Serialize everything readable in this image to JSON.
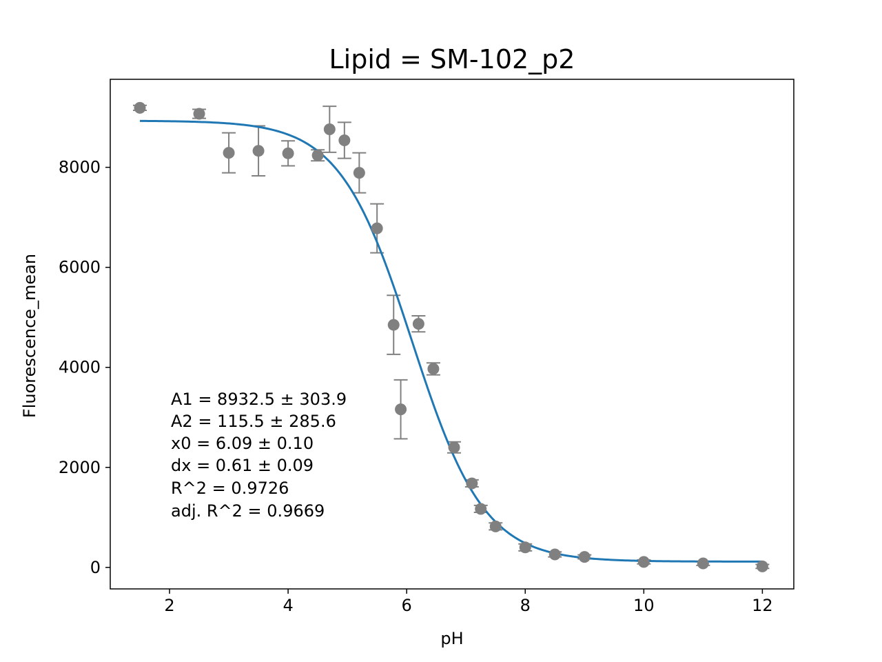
{
  "chart_data": {
    "type": "scatter",
    "title": "Lipid = SM-102_p2",
    "xlabel": "pH",
    "ylabel": "Fluorescence_mean",
    "xlim": [
      1.0,
      12.53
    ],
    "ylim": [
      -430,
      9760
    ],
    "x_ticks": [
      2,
      4,
      6,
      8,
      10,
      12
    ],
    "x_tick_labels": [
      "2",
      "4",
      "6",
      "8",
      "10",
      "12"
    ],
    "y_ticks": [
      0,
      2000,
      4000,
      6000,
      8000
    ],
    "y_tick_labels": [
      "0",
      "2000",
      "4000",
      "6000",
      "8000"
    ],
    "grid": false,
    "series": [
      {
        "kind": "points_with_error_bars",
        "color": "#808080",
        "points": [
          {
            "x": 1.5,
            "y": 9190,
            "err": 50
          },
          {
            "x": 2.5,
            "y": 9070,
            "err": 90
          },
          {
            "x": 3.0,
            "y": 8290,
            "err": 400
          },
          {
            "x": 3.5,
            "y": 8330,
            "err": 500
          },
          {
            "x": 4.0,
            "y": 8280,
            "err": 250
          },
          {
            "x": 4.5,
            "y": 8240,
            "err": 110
          },
          {
            "x": 4.7,
            "y": 8760,
            "err": 460
          },
          {
            "x": 4.95,
            "y": 8540,
            "err": 360
          },
          {
            "x": 5.2,
            "y": 7890,
            "err": 400
          },
          {
            "x": 5.5,
            "y": 6780,
            "err": 490
          },
          {
            "x": 5.78,
            "y": 4850,
            "err": 590
          },
          {
            "x": 5.9,
            "y": 3160,
            "err": 590
          },
          {
            "x": 6.2,
            "y": 4870,
            "err": 160
          },
          {
            "x": 6.45,
            "y": 3970,
            "err": 120
          },
          {
            "x": 6.8,
            "y": 2400,
            "err": 110
          },
          {
            "x": 7.1,
            "y": 1680,
            "err": 70
          },
          {
            "x": 7.25,
            "y": 1170,
            "err": 70
          },
          {
            "x": 7.5,
            "y": 820,
            "err": 70
          },
          {
            "x": 8.0,
            "y": 400,
            "err": 70
          },
          {
            "x": 8.5,
            "y": 260,
            "err": 50
          },
          {
            "x": 9.0,
            "y": 210,
            "err": 40
          },
          {
            "x": 10.0,
            "y": 110,
            "err": 40
          },
          {
            "x": 11.0,
            "y": 80,
            "err": 40
          },
          {
            "x": 12.0,
            "y": 20,
            "err": 40
          }
        ]
      },
      {
        "kind": "fit_curve",
        "model": "boltzmann",
        "color": "#1f77b4",
        "A1": 8932.5,
        "A2": 115.5,
        "x0": 6.09,
        "dx": 0.61,
        "x_range": [
          1.5,
          12.0
        ]
      }
    ],
    "annotations": [
      "A1 = 8932.5 ± 303.9",
      "A2 = 115.5 ± 285.6",
      "x0 = 6.09 ± 0.10",
      "dx = 0.61 ± 0.09",
      "R^2 = 0.9726",
      "adj. R^2 = 0.9669"
    ]
  }
}
